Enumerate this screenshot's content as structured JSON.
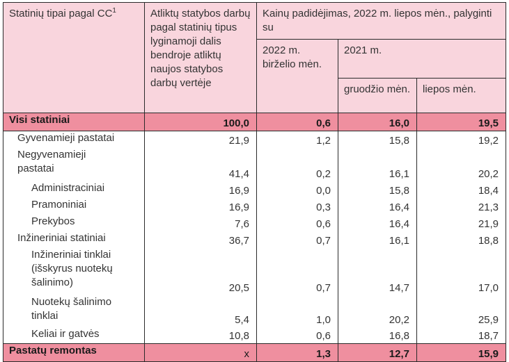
{
  "header": {
    "col1": "Statinių tipai pagal CC",
    "col1_sup": "1",
    "col2": "Atliktų statybos darbų pagal statinių tipus lyginamoji dalis bendroje atliktų naujos statybos darbų vertėje",
    "col3_group": "Kainų padidėjimas, 2022 m. liepos mėn., palyginti su",
    "col3_sub1": "2022 m. birželio mėn.",
    "col3_sub2_group": "2021 m.",
    "col3_sub2a": "gruodžio mėn.",
    "col3_sub2b": "liepos mėn."
  },
  "rows": [
    {
      "label": "Visi statiniai",
      "share": "100,0",
      "jun2022": "0,6",
      "dec2021": "16,0",
      "jul2021": "19,5"
    },
    {
      "label": "Gyvenamieji pastatai",
      "share": "21,9",
      "jun2022": "1,2",
      "dec2021": "15,8",
      "jul2021": "19,2"
    },
    {
      "label": "Negyvenamieji pastatai",
      "share": "41,4",
      "jun2022": "0,2",
      "dec2021": "16,1",
      "jul2021": "20,2"
    },
    {
      "label": "Administraciniai",
      "share": "16,9",
      "jun2022": "0,0",
      "dec2021": "15,8",
      "jul2021": "18,4"
    },
    {
      "label": "Pramoniniai",
      "share": "16,9",
      "jun2022": "0,3",
      "dec2021": "16,4",
      "jul2021": "21,3"
    },
    {
      "label": "Prekybos",
      "share": "7,6",
      "jun2022": "0,6",
      "dec2021": "16,4",
      "jul2021": "21,9"
    },
    {
      "label": "Inžineriniai statiniai",
      "share": "36,7",
      "jun2022": "0,7",
      "dec2021": "16,1",
      "jul2021": "18,8"
    },
    {
      "label": "Inžineriniai tinklai (išskyrus nuotekų šalinimo)",
      "share": "20,5",
      "jun2022": "0,7",
      "dec2021": "14,7",
      "jul2021": "17,0"
    },
    {
      "label": "Nuotekų šalinimo tinklai",
      "share": "5,4",
      "jun2022": "1,0",
      "dec2021": "20,2",
      "jul2021": "25,9"
    },
    {
      "label": "Keliai ir gatvės",
      "share": "10,8",
      "jun2022": "0,6",
      "dec2021": "16,8",
      "jul2021": "18,7"
    },
    {
      "label": "Pastatų remontas",
      "share": "x",
      "jun2022": "1,3",
      "dec2021": "12,7",
      "jul2021": "15,9"
    }
  ]
}
